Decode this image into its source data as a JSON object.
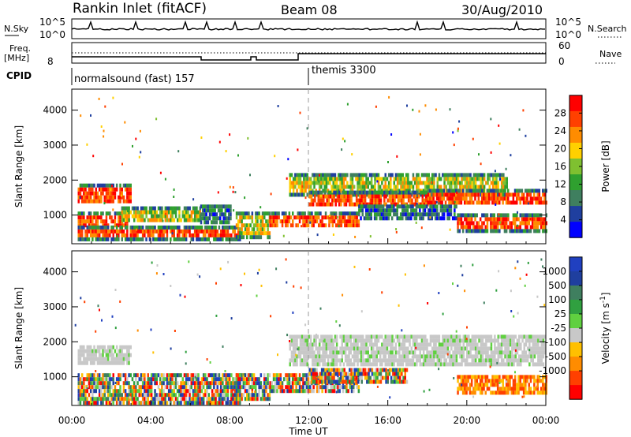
{
  "header": {
    "title": "Rankin Inlet (fitACF)",
    "beam": "Beam 08",
    "date": "30/Aug/2010"
  },
  "top_panel": {
    "nsky_label": "N.Sky",
    "nsky_ticks": [
      "10^5",
      "10^0"
    ],
    "nsearch_label": "N.Search",
    "nsearch_ticks": [
      "10^5",
      "10^0"
    ],
    "freq_label": "Freq.",
    "freq_unit": "[MHz]",
    "freq_ticks": [
      "8"
    ],
    "nave_label": "Nave",
    "nave_ticks": [
      "60",
      "0"
    ],
    "cpid_label": "CPID",
    "cpid_entries": [
      "normalsound (fast) 157",
      "themis 3300"
    ]
  },
  "colors": {
    "power": [
      "#0000ff",
      "#1f3f9f",
      "#3f7f5f",
      "#2fa02f",
      "#7fc030",
      "#ffd000",
      "#ff8c00",
      "#ff4000",
      "#ff0000"
    ],
    "velocity": [
      "#ff0000",
      "#ff4000",
      "#ff8c00",
      "#ffc000",
      "#c8c8c8",
      "#60d040",
      "#30a040",
      "#3f7f5f",
      "#1f3f9f",
      "#2040c0"
    ]
  },
  "chart_data": [
    {
      "type": "heatmap",
      "panel": "power",
      "ylabel": "Slant Range [km]",
      "yticks": [
        "1000",
        "2000",
        "3000",
        "4000"
      ],
      "ylim": [
        180,
        4600
      ],
      "xlim_hours": [
        0,
        24
      ],
      "colorbar_label": "Power [dB]",
      "colorbar_ticks": [
        "4",
        "8",
        "12",
        "16",
        "20",
        "24",
        "28"
      ],
      "bands": [
        {
          "t": [
            0.3,
            3.0
          ],
          "r": [
            1350,
            1900
          ],
          "level": "high"
        },
        {
          "t": [
            0.3,
            2.8
          ],
          "r": [
            650,
            1100
          ],
          "level": "high"
        },
        {
          "t": [
            0.3,
            8.5
          ],
          "r": [
            350,
            700
          ],
          "level": "high"
        },
        {
          "t": [
            2.5,
            6.5
          ],
          "r": [
            800,
            1250
          ],
          "level": "mid"
        },
        {
          "t": [
            6.5,
            8.0
          ],
          "r": [
            800,
            1300
          ],
          "level": "low"
        },
        {
          "t": [
            8.3,
            10.0
          ],
          "r": [
            400,
            1100
          ],
          "level": "mid"
        },
        {
          "t": [
            10.0,
            14.5
          ],
          "r": [
            700,
            1100
          ],
          "level": "high"
        },
        {
          "t": [
            11.0,
            22.0
          ],
          "r": [
            1600,
            2200
          ],
          "level": "mid"
        },
        {
          "t": [
            12.0,
            18.0
          ],
          "r": [
            1250,
            1700
          ],
          "level": "high"
        },
        {
          "t": [
            18.0,
            24.0
          ],
          "r": [
            1300,
            1750
          ],
          "level": "high"
        },
        {
          "t": [
            19.5,
            24.0
          ],
          "r": [
            550,
            1050
          ],
          "level": "high"
        },
        {
          "t": [
            14.5,
            19.5
          ],
          "r": [
            900,
            1300
          ],
          "level": "low"
        }
      ]
    },
    {
      "type": "heatmap",
      "panel": "velocity",
      "ylabel": "Slant Range [km]",
      "yticks": [
        "1000",
        "2000",
        "3000",
        "4000"
      ],
      "ylim": [
        180,
        4600
      ],
      "xlim_hours": [
        0,
        24
      ],
      "xticks": [
        "00:00",
        "04:00",
        "08:00",
        "12:00",
        "16:00",
        "20:00",
        "00:00"
      ],
      "xlabel": "Time UT",
      "colorbar_label": "Velocity [m s^-1]",
      "colorbar_ticks": [
        "1000",
        "500",
        "100",
        "25",
        "-25",
        "-100",
        "-500",
        "-1000"
      ],
      "bands": [
        {
          "t": [
            0.3,
            3.0
          ],
          "r": [
            1350,
            1900
          ],
          "level": "ground"
        },
        {
          "t": [
            0.3,
            8.5
          ],
          "r": [
            300,
            1100
          ],
          "level": "mixed"
        },
        {
          "t": [
            8.3,
            10.0
          ],
          "r": [
            400,
            1100
          ],
          "level": "mixed"
        },
        {
          "t": [
            10.0,
            14.5
          ],
          "r": [
            600,
            1100
          ],
          "level": "mixed"
        },
        {
          "t": [
            11.0,
            24.0
          ],
          "r": [
            1300,
            2200
          ],
          "level": "ground"
        },
        {
          "t": [
            12.0,
            17.0
          ],
          "r": [
            800,
            1250
          ],
          "level": "mixed"
        },
        {
          "t": [
            19.5,
            24.0
          ],
          "r": [
            500,
            1050
          ],
          "level": "neg"
        }
      ]
    }
  ]
}
